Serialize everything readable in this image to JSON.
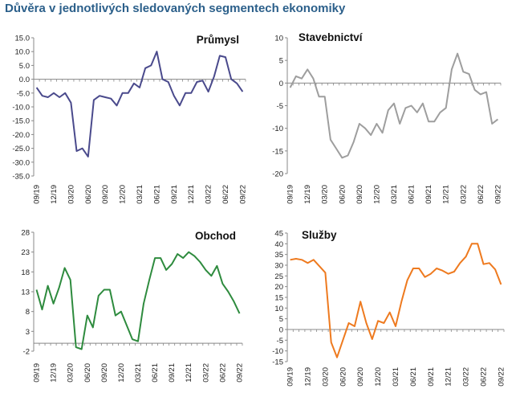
{
  "page_title": "Důvěra v jednotlivých sledovaných segmentech ekonomiky",
  "chart_data": [
    {
      "type": "line",
      "title": "Průmysl",
      "color": "#4a4a8c",
      "y_ticks": [
        "15.0",
        "10.0",
        "5.0",
        "0.0",
        "-5.0",
        "-10.0",
        "-15.0",
        "-20.0",
        "-25.0",
        "-30.0",
        "-35.0"
      ],
      "ylim": [
        -35,
        15
      ],
      "x_labels": [
        "09/19",
        "12/19",
        "03/20",
        "06/20",
        "09/20",
        "12/20",
        "03/21",
        "06/21",
        "09/21",
        "12/21",
        "03/22",
        "06/22",
        "09/22"
      ],
      "series": [
        {
          "values": [
            -3,
            -6,
            -6.5,
            -5,
            -6.5,
            -5,
            -8.5,
            -26,
            -25,
            -28,
            -7.5,
            -6,
            -6.5,
            -7,
            -9.5,
            -5,
            -5,
            -1.5,
            -3,
            4,
            5,
            10,
            0,
            -1,
            -6,
            -9.5,
            -5,
            -5,
            -1,
            -0.5,
            -4.5,
            1,
            8.5,
            8,
            0,
            -1.5,
            -4.5
          ]
        }
      ]
    },
    {
      "type": "line",
      "title": "Stavebnictví",
      "color": "#9e9e9e",
      "y_ticks": [
        "10",
        "5",
        "0",
        "-5",
        "-10",
        "-15",
        "-20"
      ],
      "ylim": [
        -20,
        10
      ],
      "x_labels": [
        "09/19",
        "12/19",
        "03/20",
        "06/20",
        "09/20",
        "12/20",
        "03/21",
        "06/21",
        "09/21",
        "12/21",
        "03/22",
        "06/22",
        "09/22"
      ],
      "series": [
        {
          "values": [
            -1,
            1.5,
            1,
            3,
            1,
            -3,
            -3,
            -12.5,
            -14.5,
            -16.5,
            -16,
            -13,
            -9,
            -10,
            -11.5,
            -9,
            -11,
            -6,
            -4.5,
            -9,
            -5.5,
            -5,
            -6.5,
            -4.5,
            -8.5,
            -8.5,
            -6.5,
            -5.5,
            3,
            6.5,
            2.5,
            2,
            -1.5,
            -2.5,
            -2,
            -9,
            -8
          ]
        }
      ]
    },
    {
      "type": "line",
      "title": "Obchod",
      "color": "#2e8b3e",
      "y_ticks": [
        "28",
        "23",
        "18",
        "13",
        "8",
        "3",
        "-2"
      ],
      "ylim": [
        -2,
        28
      ],
      "x_labels": [
        "09/19",
        "12/19",
        "03/20",
        "06/20",
        "09/20",
        "12/20",
        "03/21",
        "06/21",
        "09/21",
        "12/21",
        "03/22",
        "06/22",
        "09/22"
      ],
      "series": [
        {
          "values": [
            13.5,
            8.5,
            14.5,
            10,
            14,
            19,
            16,
            -1,
            -1.5,
            7,
            4,
            12,
            13.5,
            13.5,
            7,
            8,
            4.5,
            1,
            0.5,
            10,
            16,
            21.5,
            21.5,
            18.5,
            20,
            22.5,
            21.5,
            23,
            22,
            20.5,
            18.5,
            17,
            19.5,
            15,
            13,
            10.5,
            7.5
          ]
        }
      ]
    },
    {
      "type": "line",
      "title": "Služby",
      "color": "#ee7a1f",
      "y_ticks": [
        "45",
        "40",
        "35",
        "30",
        "25",
        "20",
        "15",
        "10",
        "5",
        "0",
        "-5",
        "-10",
        "-15"
      ],
      "ylim": [
        -15,
        45
      ],
      "x_labels": [
        "09/19",
        "12/19",
        "03/20",
        "06/20",
        "09/20",
        "12/20",
        "03/21",
        "06/21",
        "09/21",
        "12/21",
        "03/22",
        "06/22",
        "09/22"
      ],
      "series": [
        {
          "values": [
            32.5,
            33,
            32.5,
            31,
            32.5,
            29.5,
            26.5,
            -6,
            -13,
            -5,
            3,
            1.5,
            13,
            3,
            -4.5,
            4,
            3,
            8,
            1.5,
            13,
            23,
            28.5,
            28.5,
            24.5,
            26,
            28.5,
            27.5,
            26,
            27,
            31,
            34,
            40,
            40,
            30.5,
            31,
            28,
            21
          ]
        }
      ]
    }
  ]
}
